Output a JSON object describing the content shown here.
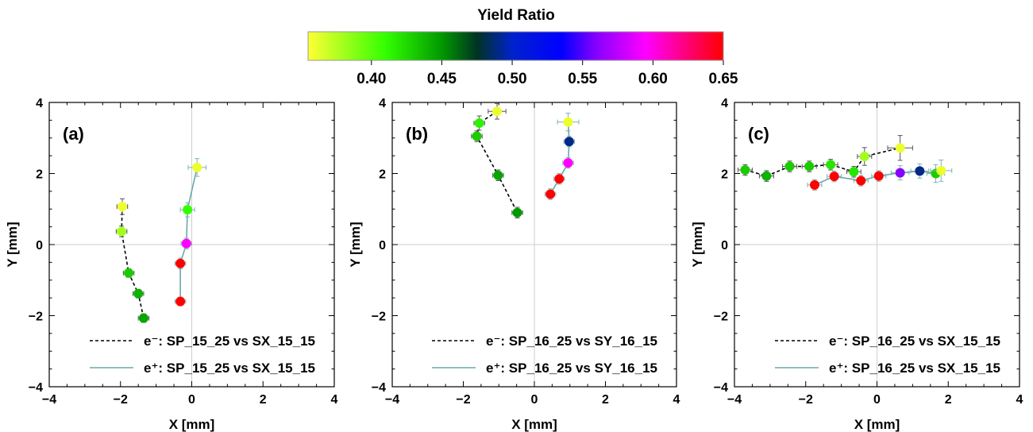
{
  "colorbar": {
    "title": "Yield Ratio",
    "tick_labels": [
      "0.40",
      "0.45",
      "0.50",
      "0.55",
      "0.60",
      "0.65"
    ],
    "ticks": [
      0.4,
      0.45,
      0.5,
      0.55,
      0.6,
      0.65
    ],
    "range": [
      0.355,
      0.65
    ],
    "stops": [
      {
        "v": 0.355,
        "c": "#ffff33"
      },
      {
        "v": 0.41,
        "c": "#33ff00"
      },
      {
        "v": 0.45,
        "c": "#009900"
      },
      {
        "v": 0.475,
        "c": "#003322"
      },
      {
        "v": 0.5,
        "c": "#0022cc"
      },
      {
        "v": 0.535,
        "c": "#0000ff"
      },
      {
        "v": 0.56,
        "c": "#8800ff"
      },
      {
        "v": 0.595,
        "c": "#ff00ff"
      },
      {
        "v": 0.65,
        "c": "#ff0000"
      }
    ]
  },
  "chart_data": [
    {
      "type": "scatter",
      "panel_label": "(a)",
      "xlabel": "X [mm]",
      "ylabel": "Y [mm]",
      "xlim": [
        -4,
        4
      ],
      "ylim": [
        -4,
        4
      ],
      "xticks": [
        -4,
        -2,
        0,
        2,
        4
      ],
      "yticks": [
        -4,
        -2,
        0,
        2,
        4
      ],
      "tick_labels_x": [
        "−4",
        "−2",
        "0",
        "2",
        "4"
      ],
      "tick_labels_y": [
        "−4",
        "−2",
        "0",
        "2",
        "4"
      ],
      "legend_position": "bottom-right",
      "series": [
        {
          "name": "e⁻: SP_15_25 vs SX_15_15",
          "style": "dashed",
          "line_color": "#000000",
          "points": [
            {
              "x": -1.95,
              "y": 1.07,
              "ratio": 0.36,
              "xerr": 0.15,
              "yerr": 0.22
            },
            {
              "x": -1.97,
              "y": 0.37,
              "ratio": 0.38,
              "xerr": 0.15,
              "yerr": 0.15
            },
            {
              "x": -1.77,
              "y": -0.8,
              "ratio": 0.43,
              "xerr": 0.15,
              "yerr": 0.12
            },
            {
              "x": -1.5,
              "y": -1.38,
              "ratio": 0.44,
              "xerr": 0.15,
              "yerr": 0.12
            },
            {
              "x": -1.35,
              "y": -2.07,
              "ratio": 0.445,
              "xerr": 0.15,
              "yerr": 0.12
            }
          ]
        },
        {
          "name": "e⁺: SP_15_25 vs SX_15_15",
          "style": "solid",
          "line_color": "#6aa9aa",
          "points": [
            {
              "x": 0.15,
              "y": 2.17,
              "ratio": 0.36,
              "xerr": 0.25,
              "yerr": 0.25
            },
            {
              "x": -0.12,
              "y": 0.98,
              "ratio": 0.41,
              "xerr": 0.2,
              "yerr": 0.2
            },
            {
              "x": -0.15,
              "y": 0.03,
              "ratio": 0.595,
              "xerr": 0.15,
              "yerr": 0.15
            },
            {
              "x": -0.32,
              "y": -0.53,
              "ratio": 0.65,
              "xerr": 0.15,
              "yerr": 0.15
            },
            {
              "x": -0.32,
              "y": -1.6,
              "ratio": 0.65,
              "xerr": 0.15,
              "yerr": 0.12
            }
          ]
        }
      ]
    },
    {
      "type": "scatter",
      "panel_label": "(b)",
      "xlabel": "X [mm]",
      "ylabel": "Y [mm]",
      "xlim": [
        -4,
        4
      ],
      "ylim": [
        -4,
        4
      ],
      "xticks": [
        -4,
        -2,
        0,
        2,
        4
      ],
      "yticks": [
        -4,
        -2,
        0,
        2,
        4
      ],
      "tick_labels_x": [
        "−4",
        "−2",
        "0",
        "2",
        "4"
      ],
      "tick_labels_y": [
        "−4",
        "−2",
        "0",
        "2",
        "4"
      ],
      "legend_position": "bottom-right",
      "series": [
        {
          "name": "e⁻: SP_16_25 vs SY_16_15",
          "style": "dashed",
          "line_color": "#000000",
          "points": [
            {
              "x": -1.05,
              "y": 3.75,
              "ratio": 0.36,
              "xerr": 0.25,
              "yerr": 0.22
            },
            {
              "x": -1.55,
              "y": 3.42,
              "ratio": 0.415,
              "xerr": 0.15,
              "yerr": 0.2
            },
            {
              "x": -1.62,
              "y": 3.05,
              "ratio": 0.43,
              "xerr": 0.15,
              "yerr": 0.15
            },
            {
              "x": -1.02,
              "y": 1.95,
              "ratio": 0.445,
              "xerr": 0.15,
              "yerr": 0.15
            },
            {
              "x": -0.48,
              "y": 0.9,
              "ratio": 0.45,
              "xerr": 0.15,
              "yerr": 0.15
            }
          ]
        },
        {
          "name": "e⁺: SP_16_25 vs SY_16_15",
          "style": "solid",
          "line_color": "#6aa9aa",
          "points": [
            {
              "x": 0.95,
              "y": 3.45,
              "ratio": 0.36,
              "xerr": 0.3,
              "yerr": 0.25
            },
            {
              "x": 0.98,
              "y": 2.9,
              "ratio": 0.49,
              "xerr": 0.15,
              "yerr": 0.15
            },
            {
              "x": 0.95,
              "y": 2.3,
              "ratio": 0.595,
              "xerr": 0.15,
              "yerr": 0.15
            },
            {
              "x": 0.7,
              "y": 1.85,
              "ratio": 0.65,
              "xerr": 0.15,
              "yerr": 0.15
            },
            {
              "x": 0.45,
              "y": 1.42,
              "ratio": 0.65,
              "xerr": 0.15,
              "yerr": 0.15
            }
          ]
        }
      ]
    },
    {
      "type": "scatter",
      "panel_label": "(c)",
      "xlabel": "X [mm]",
      "ylabel": "Y [mm]",
      "xlim": [
        -4,
        4
      ],
      "ylim": [
        -4,
        4
      ],
      "xticks": [
        -4,
        -2,
        0,
        2,
        4
      ],
      "yticks": [
        -4,
        -2,
        0,
        2,
        4
      ],
      "tick_labels_x": [
        "−4",
        "−2",
        "0",
        "2",
        "4"
      ],
      "tick_labels_y": [
        "−4",
        "−2",
        "0",
        "2",
        "4"
      ],
      "legend_position": "bottom-right",
      "series": [
        {
          "name": "e⁻: SP_16_25 vs SX_15_15",
          "style": "dashed",
          "line_color": "#000000",
          "points": [
            {
              "x": -3.7,
              "y": 2.1,
              "ratio": 0.43,
              "xerr": 0.2,
              "yerr": 0.15
            },
            {
              "x": -3.1,
              "y": 1.93,
              "ratio": 0.44,
              "xerr": 0.2,
              "yerr": 0.15
            },
            {
              "x": -2.45,
              "y": 2.2,
              "ratio": 0.43,
              "xerr": 0.2,
              "yerr": 0.15
            },
            {
              "x": -1.9,
              "y": 2.2,
              "ratio": 0.43,
              "xerr": 0.2,
              "yerr": 0.15
            },
            {
              "x": -1.3,
              "y": 2.25,
              "ratio": 0.42,
              "xerr": 0.2,
              "yerr": 0.15
            },
            {
              "x": -0.65,
              "y": 2.05,
              "ratio": 0.42,
              "xerr": 0.2,
              "yerr": 0.15
            },
            {
              "x": -0.35,
              "y": 2.48,
              "ratio": 0.38,
              "xerr": 0.2,
              "yerr": 0.25
            },
            {
              "x": 0.65,
              "y": 2.72,
              "ratio": 0.36,
              "xerr": 0.35,
              "yerr": 0.35
            }
          ]
        },
        {
          "name": "e⁺: SP_16_25 vs SX_15_15",
          "style": "solid",
          "line_color": "#6aa9aa",
          "points": [
            {
              "x": -1.75,
              "y": 1.68,
              "ratio": 0.65,
              "xerr": 0.2,
              "yerr": 0.15
            },
            {
              "x": -1.2,
              "y": 1.92,
              "ratio": 0.65,
              "xerr": 0.2,
              "yerr": 0.15
            },
            {
              "x": -0.45,
              "y": 1.8,
              "ratio": 0.65,
              "xerr": 0.2,
              "yerr": 0.15
            },
            {
              "x": 0.05,
              "y": 1.93,
              "ratio": 0.65,
              "xerr": 0.2,
              "yerr": 0.15
            },
            {
              "x": 0.65,
              "y": 2.02,
              "ratio": 0.56,
              "xerr": 0.25,
              "yerr": 0.2
            },
            {
              "x": 1.2,
              "y": 2.07,
              "ratio": 0.49,
              "xerr": 0.25,
              "yerr": 0.2
            },
            {
              "x": 1.65,
              "y": 2.0,
              "ratio": 0.43,
              "xerr": 0.25,
              "yerr": 0.25
            },
            {
              "x": 1.8,
              "y": 2.08,
              "ratio": 0.36,
              "xerr": 0.3,
              "yerr": 0.3
            }
          ]
        }
      ]
    }
  ]
}
